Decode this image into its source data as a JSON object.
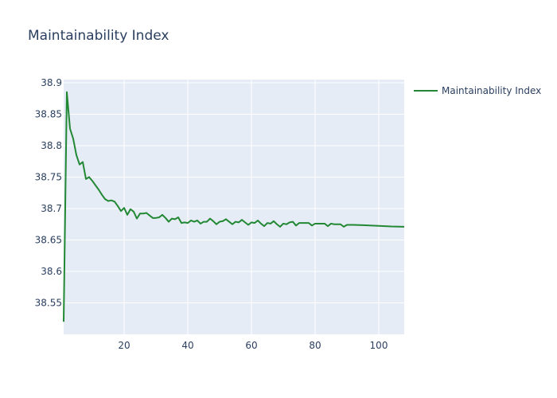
{
  "chart_data": {
    "type": "line",
    "title": "Maintainability Index",
    "xlabel": "",
    "ylabel": "",
    "xlim": [
      1,
      108
    ],
    "ylim": [
      38.5,
      38.905
    ],
    "x_ticks": [
      20,
      40,
      60,
      80,
      100
    ],
    "y_ticks": [
      38.55,
      38.6,
      38.65,
      38.7,
      38.75,
      38.8,
      38.85,
      38.9
    ],
    "grid": true,
    "legend_position": "top-right",
    "series": [
      {
        "name": "Maintainability Index",
        "color": "#228833",
        "points": [
          [
            1,
            38.52
          ],
          [
            2,
            38.885
          ],
          [
            3,
            38.827
          ],
          [
            4,
            38.811
          ],
          [
            5,
            38.785
          ],
          [
            6,
            38.77
          ],
          [
            7,
            38.774
          ],
          [
            8,
            38.747
          ],
          [
            9,
            38.75
          ],
          [
            10,
            38.744
          ],
          [
            11,
            38.737
          ],
          [
            12,
            38.73
          ],
          [
            13,
            38.722
          ],
          [
            14,
            38.715
          ],
          [
            15,
            38.712
          ],
          [
            16,
            38.713
          ],
          [
            17,
            38.711
          ],
          [
            18,
            38.704
          ],
          [
            19,
            38.696
          ],
          [
            20,
            38.701
          ],
          [
            21,
            38.69
          ],
          [
            22,
            38.699
          ],
          [
            23,
            38.695
          ],
          [
            24,
            38.684
          ],
          [
            25,
            38.692
          ],
          [
            26,
            38.692
          ],
          [
            27,
            38.693
          ],
          [
            28,
            38.689
          ],
          [
            29,
            38.685
          ],
          [
            30,
            38.685
          ],
          [
            31,
            38.686
          ],
          [
            32,
            38.69
          ],
          [
            33,
            38.685
          ],
          [
            34,
            38.679
          ],
          [
            35,
            38.684
          ],
          [
            36,
            38.683
          ],
          [
            37,
            38.686
          ],
          [
            38,
            38.677
          ],
          [
            39,
            38.678
          ],
          [
            40,
            38.677
          ],
          [
            41,
            38.681
          ],
          [
            42,
            38.679
          ],
          [
            43,
            38.681
          ],
          [
            44,
            38.676
          ],
          [
            45,
            38.679
          ],
          [
            46,
            38.679
          ],
          [
            47,
            38.684
          ],
          [
            48,
            38.68
          ],
          [
            49,
            38.675
          ],
          [
            50,
            38.679
          ],
          [
            51,
            38.68
          ],
          [
            52,
            38.683
          ],
          [
            53,
            38.679
          ],
          [
            54,
            38.675
          ],
          [
            55,
            38.679
          ],
          [
            56,
            38.678
          ],
          [
            57,
            38.682
          ],
          [
            58,
            38.678
          ],
          [
            59,
            38.674
          ],
          [
            60,
            38.678
          ],
          [
            61,
            38.677
          ],
          [
            62,
            38.681
          ],
          [
            63,
            38.676
          ],
          [
            64,
            38.672
          ],
          [
            65,
            38.677
          ],
          [
            66,
            38.676
          ],
          [
            67,
            38.68
          ],
          [
            68,
            38.675
          ],
          [
            69,
            38.671
          ],
          [
            70,
            38.676
          ],
          [
            71,
            38.675
          ],
          [
            72,
            38.678
          ],
          [
            73,
            38.679
          ],
          [
            74,
            38.673
          ],
          [
            75,
            38.677
          ],
          [
            76,
            38.677
          ],
          [
            77,
            38.677
          ],
          [
            78,
            38.677
          ],
          [
            79,
            38.673
          ],
          [
            80,
            38.676
          ],
          [
            81,
            38.676
          ],
          [
            82,
            38.676
          ],
          [
            83,
            38.676
          ],
          [
            84,
            38.672
          ],
          [
            85,
            38.676
          ],
          [
            86,
            38.675
          ],
          [
            87,
            38.675
          ],
          [
            88,
            38.675
          ],
          [
            89,
            38.671
          ],
          [
            90,
            38.674
          ],
          [
            92,
            38.674
          ],
          [
            95,
            38.6735
          ],
          [
            100,
            38.6725
          ],
          [
            104,
            38.6715
          ],
          [
            108,
            38.671
          ]
        ]
      }
    ]
  }
}
